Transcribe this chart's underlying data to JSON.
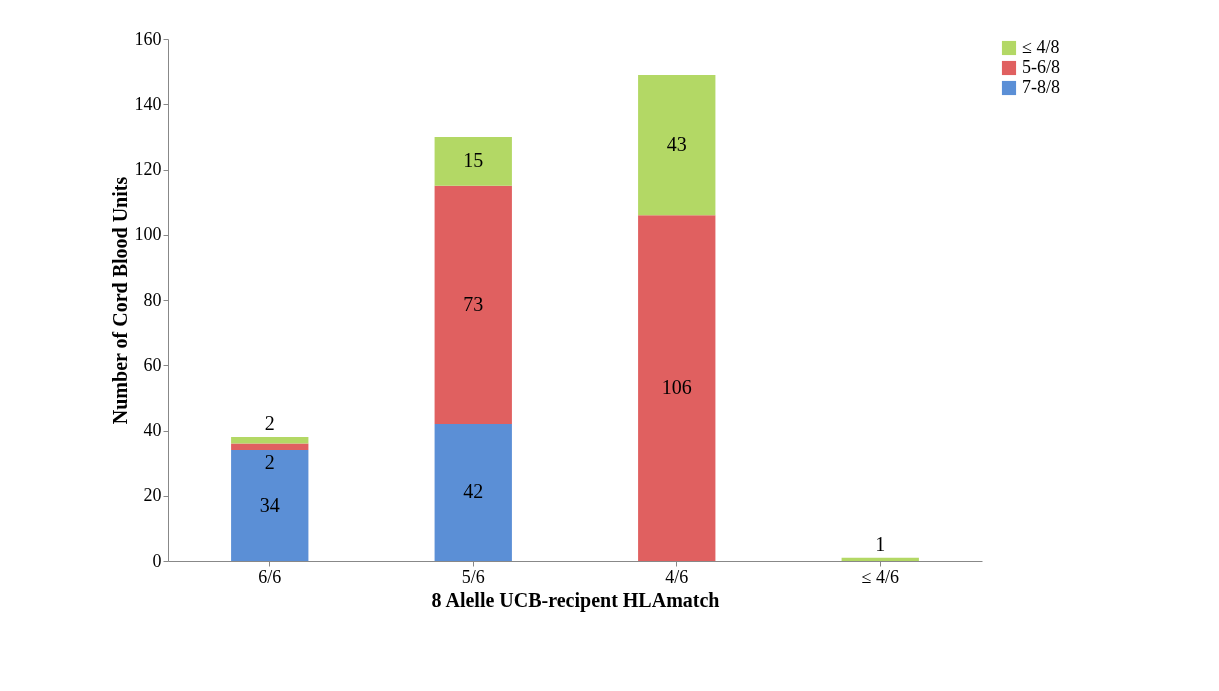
{
  "chart_data": {
    "type": "bar",
    "stacked": true,
    "xlabel": "8 Alelle UCB-recipent HLAmatch",
    "ylabel": "Number of Cord Blood Units",
    "categories": [
      "6/6",
      "5/6",
      "4/6",
      "≤ 4/6"
    ],
    "series": [
      {
        "name": "7-8/8",
        "color": "#5b8fd6",
        "values": [
          34,
          42,
          null,
          null
        ]
      },
      {
        "name": "5-6/8",
        "color": "#e06060",
        "values": [
          2,
          73,
          106,
          null
        ]
      },
      {
        "name": "≤ 4/8",
        "color": "#b3d865",
        "values": [
          2,
          15,
          43,
          1
        ]
      }
    ],
    "ylim": [
      0,
      160
    ],
    "yticks": [
      0,
      20,
      40,
      60,
      80,
      100,
      120,
      140,
      160
    ],
    "grid": false,
    "legend": "right",
    "data_labels": true
  }
}
